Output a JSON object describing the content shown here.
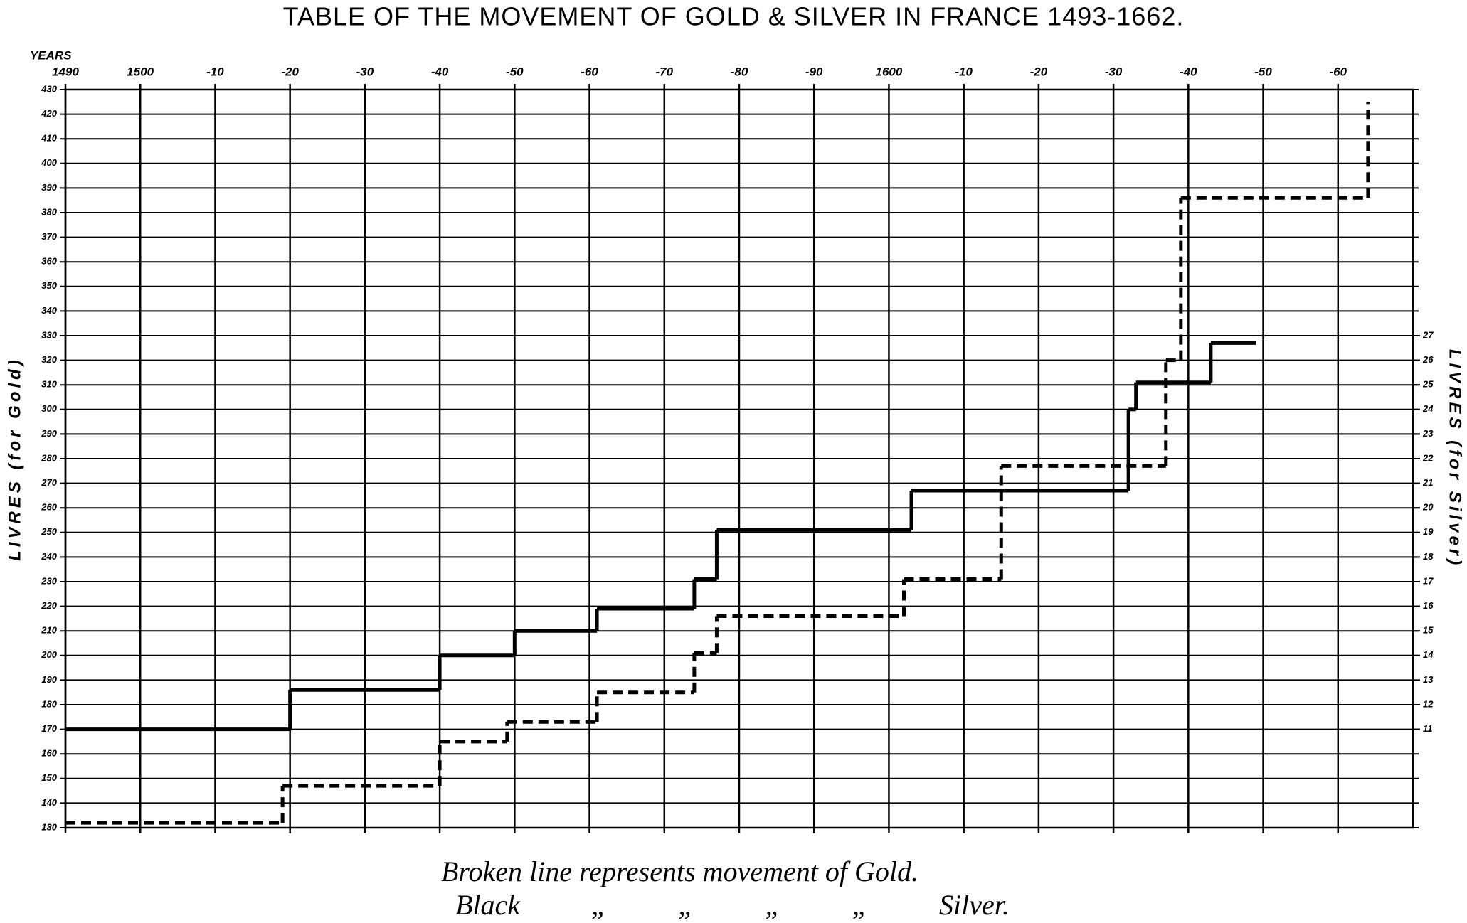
{
  "chart_data": {
    "type": "step",
    "title": "TABLE OF THE MOVEMENT OF GOLD & SILVER IN FRANCE 1493-1662.",
    "x_label": "YEARS",
    "y_label": "LIVRES (for Gold)",
    "y2_label": "LIVRES (for Silver)",
    "notes": [
      "Broken line represents movement of Gold.",
      "Black „ „ „ „ Silver."
    ],
    "xlim": [
      1490,
      1670
    ],
    "xticks": [
      {
        "value": 1490,
        "label": "1490"
      },
      {
        "value": 1500,
        "label": "1500"
      },
      {
        "value": 1510,
        "label": "-10"
      },
      {
        "value": 1520,
        "label": "-20"
      },
      {
        "value": 1530,
        "label": "-30"
      },
      {
        "value": 1540,
        "label": "-40"
      },
      {
        "value": 1550,
        "label": "-50"
      },
      {
        "value": 1560,
        "label": "-60"
      },
      {
        "value": 1570,
        "label": "-70"
      },
      {
        "value": 1580,
        "label": "-80"
      },
      {
        "value": 1590,
        "label": "-90"
      },
      {
        "value": 1600,
        "label": "1600"
      },
      {
        "value": 1610,
        "label": "-10"
      },
      {
        "value": 1620,
        "label": "-20"
      },
      {
        "value": 1630,
        "label": "-30"
      },
      {
        "value": 1640,
        "label": "-40"
      },
      {
        "value": 1650,
        "label": "-50"
      },
      {
        "value": 1660,
        "label": "-60"
      }
    ],
    "ylim": [
      130,
      430
    ],
    "yticks": [
      130,
      140,
      150,
      160,
      170,
      180,
      190,
      200,
      210,
      220,
      230,
      240,
      250,
      260,
      270,
      280,
      290,
      300,
      310,
      320,
      330,
      340,
      350,
      360,
      370,
      380,
      390,
      400,
      410,
      420,
      430
    ],
    "y2lim": [
      7,
      37
    ],
    "y2ticks": [
      11,
      12,
      13,
      14,
      15,
      16,
      17,
      18,
      19,
      20,
      21,
      22,
      23,
      24,
      25,
      26,
      27
    ],
    "grid": true,
    "series": [
      {
        "color": "#000000",
        "dashed": true,
        "x": [
          1490,
          1519,
          1540,
          1549,
          1561,
          1574,
          1577,
          1602,
          1615,
          1637,
          1639,
          1664
        ],
        "values": [
          132,
          147,
          165,
          173,
          185,
          201,
          216,
          231,
          277,
          320,
          386,
          425
        ]
      },
      {
        "color": "#000000",
        "dashed": false,
        "axis": "y2",
        "x": [
          1490,
          1520,
          1540,
          1550,
          1561,
          1574,
          1577,
          1603,
          1632,
          1633,
          1643,
          1649
        ],
        "values": [
          11,
          12.6,
          14,
          15,
          15.9,
          17.1,
          19.1,
          20.7,
          24,
          25.1,
          26.7,
          26.7
        ]
      }
    ]
  }
}
